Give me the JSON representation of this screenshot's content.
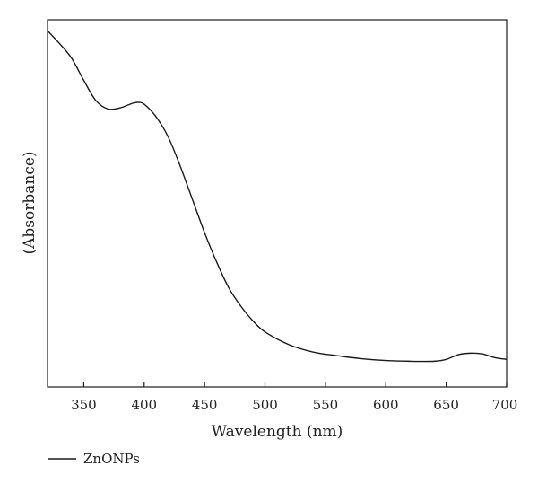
{
  "chart_data": {
    "type": "line",
    "title": "",
    "xlabel": "Wavelength (nm)",
    "ylabel": "(Absorbance)",
    "xlim": [
      320,
      700
    ],
    "ylim": [
      0,
      1
    ],
    "x_ticks": [
      350,
      400,
      450,
      500,
      550,
      600,
      650,
      700
    ],
    "y_ticks": [],
    "grid": false,
    "legend_position": "bottom-left",
    "series": [
      {
        "name": "ZnONPs",
        "color": "#1a1a1a",
        "x": [
          320,
          330,
          340,
          350,
          360,
          370,
          380,
          390,
          395,
          400,
          410,
          420,
          430,
          440,
          450,
          460,
          470,
          480,
          490,
          500,
          520,
          540,
          560,
          580,
          600,
          620,
          640,
          650,
          660,
          670,
          680,
          690,
          700
        ],
        "y": [
          0.97,
          0.935,
          0.895,
          0.835,
          0.78,
          0.757,
          0.76,
          0.772,
          0.775,
          0.77,
          0.735,
          0.68,
          0.6,
          0.51,
          0.42,
          0.34,
          0.27,
          0.22,
          0.18,
          0.15,
          0.115,
          0.095,
          0.085,
          0.077,
          0.072,
          0.07,
          0.07,
          0.075,
          0.088,
          0.092,
          0.09,
          0.08,
          0.075
        ]
      }
    ]
  }
}
